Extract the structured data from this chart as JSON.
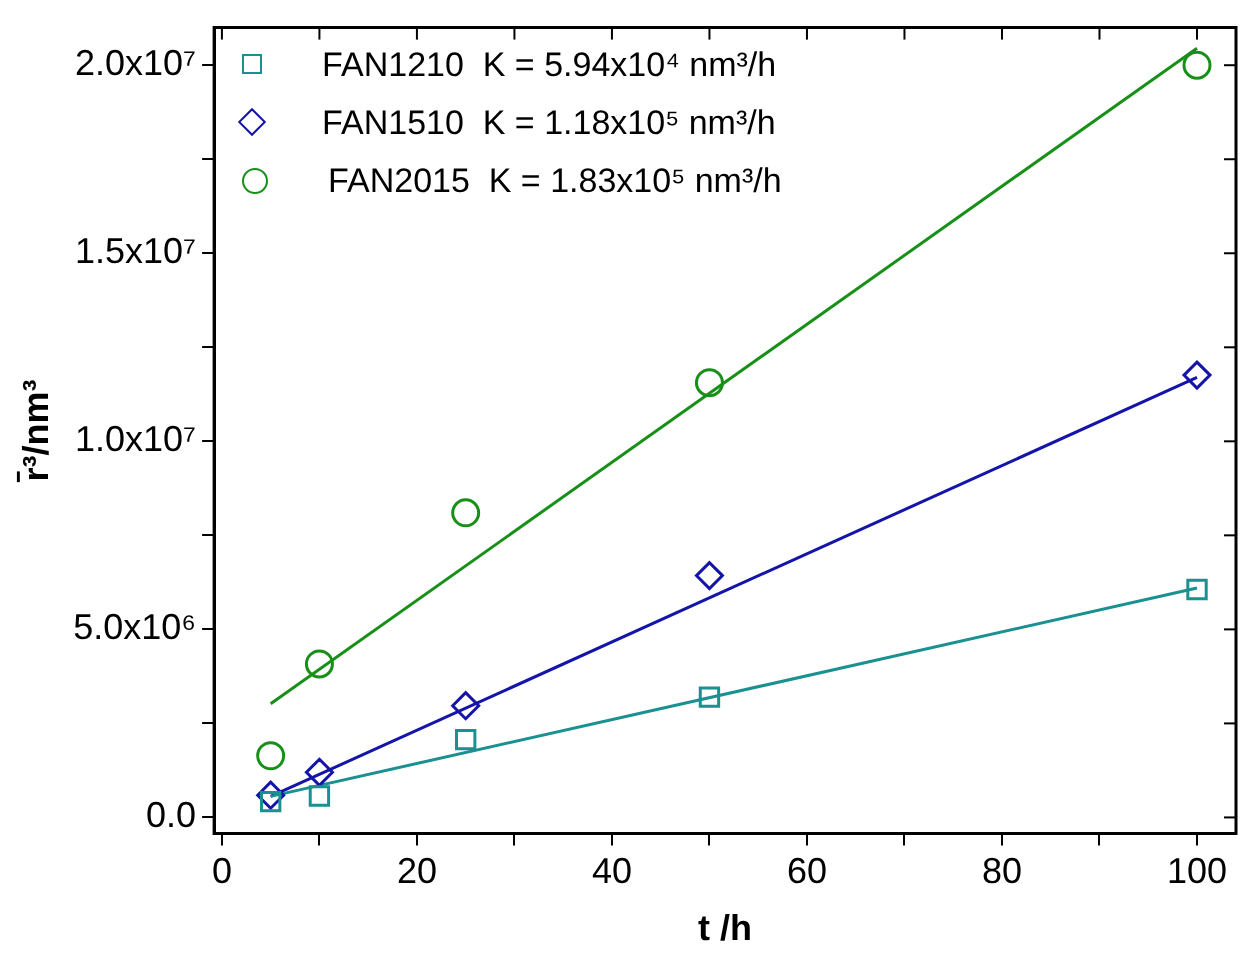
{
  "chart_data": {
    "type": "scatter",
    "xlabel": "t /h",
    "ylabel": "r̄³/nm³",
    "xlim": [
      -0.8,
      104
    ],
    "xticks": [
      0,
      {
        "value": 10,
        "label": null
      },
      20,
      {
        "value": 30,
        "label": null
      },
      40,
      {
        "value": 50,
        "label": null
      },
      60,
      {
        "value": 70,
        "label": null
      },
      80,
      {
        "value": 90,
        "label": null
      },
      100
    ],
    "ylim": [
      -430000,
      21000000
    ],
    "yticks": [
      {
        "value": 0,
        "label": "0.0"
      },
      {
        "value": 2500000,
        "label": null
      },
      {
        "value": 5000000,
        "label": "5.0x10⁶"
      },
      {
        "value": 7500000,
        "label": null
      },
      {
        "value": 10000000,
        "label": "1.0x10⁷"
      },
      {
        "value": 12500000,
        "label": null
      },
      {
        "value": 15000000,
        "label": "1.5x10⁷"
      },
      {
        "value": 17500000,
        "label": null
      },
      {
        "value": 20000000,
        "label": "2.0x10⁷"
      }
    ],
    "grid": false,
    "legend": "top left",
    "series": [
      {
        "name": "FAN1210  K = 5.94x10⁴ nm³/h",
        "color": "#1a9090",
        "marker": "square",
        "x": [
          5,
          10,
          25,
          50,
          100
        ],
        "values": [
          420000,
          570000,
          2070000,
          3200000,
          6060000
        ]
      },
      {
        "name": "FAN1510  K = 1.18x10⁵ nm³/h",
        "color": "#1414a8",
        "marker": "diamond",
        "x": [
          5,
          10,
          25,
          50,
          100
        ],
        "values": [
          590000,
          1200000,
          2970000,
          6430000,
          11760000
        ]
      },
      {
        "name": "FAN2015  K = 1.83x10⁵ nm³/h",
        "color": "#189018",
        "marker": "circle",
        "x": [
          5,
          10,
          25,
          50,
          100
        ],
        "values": [
          1640000,
          4080000,
          8100000,
          11560000,
          20000000
        ]
      },
      {
        "type": "line",
        "color": "#1a9090",
        "marker": "none",
        "line_style": "solid",
        "x": [
          5,
          100
        ],
        "values": [
          560000,
          6100000
        ]
      },
      {
        "type": "line",
        "color": "#1414a8",
        "marker": "none",
        "line_style": "solid",
        "x": [
          5,
          100
        ],
        "values": [
          560000,
          11700000
        ]
      },
      {
        "type": "line",
        "color": "#189018",
        "marker": "none",
        "line_style": "solid",
        "x": [
          5,
          100
        ],
        "values": [
          3020000,
          20450000
        ]
      }
    ]
  }
}
